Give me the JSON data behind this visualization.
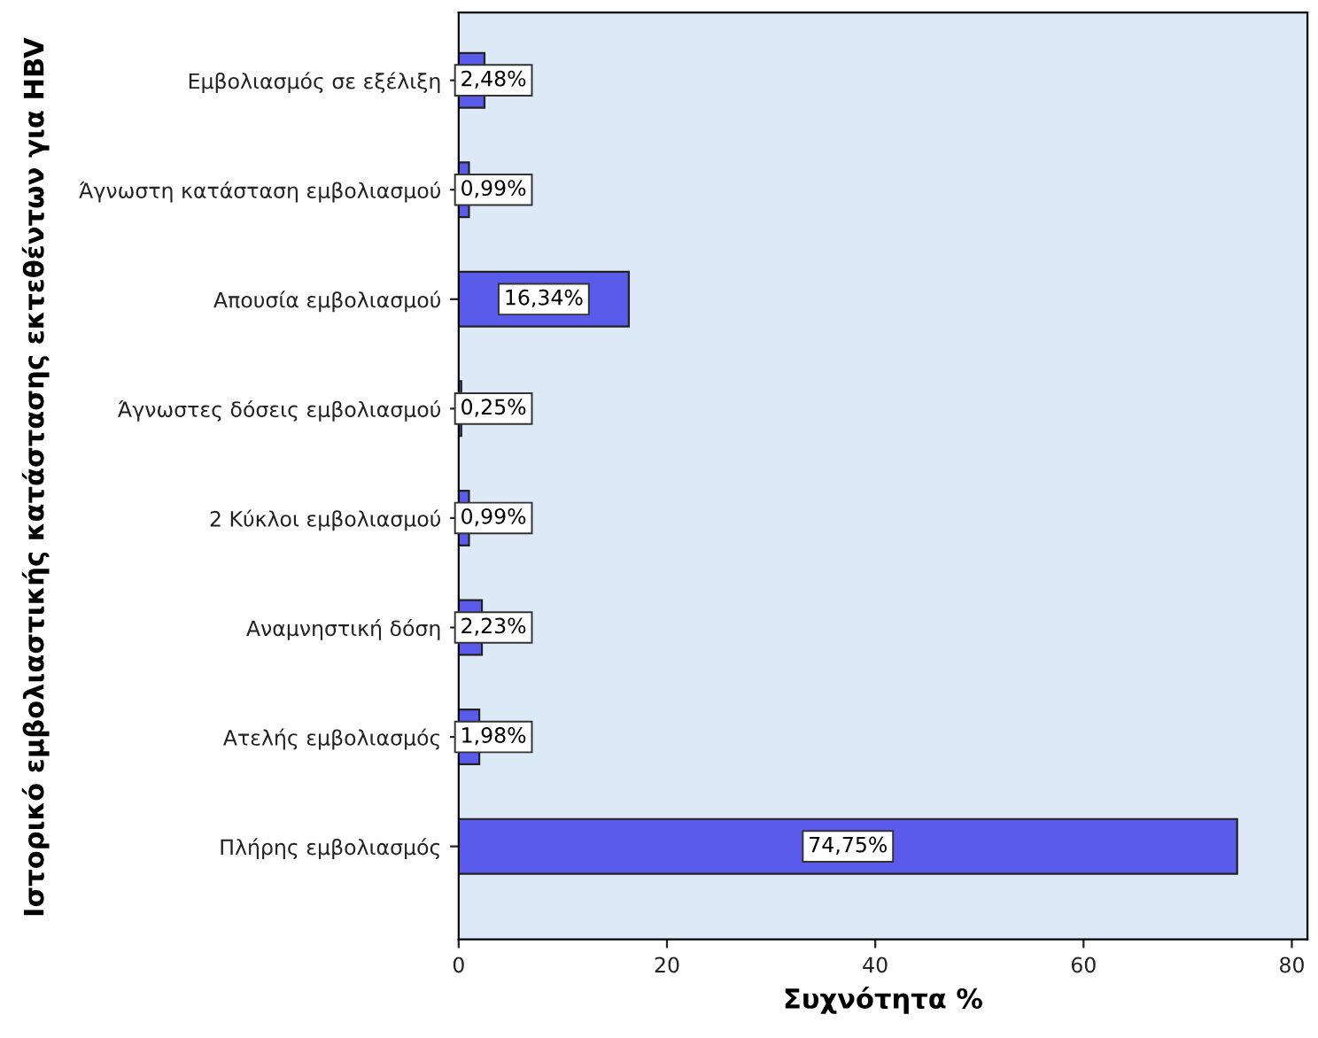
{
  "chart_data": {
    "type": "bar",
    "orientation": "horizontal",
    "xlabel": "Συχνότητα %",
    "ylabel": "Ιστορικό εμβολιαστικής κατάστασης εκτεθέντων για HBV",
    "categories": [
      "Εμβολιασμός σε εξέλιξη",
      "Άγνωστη κατάσταση εμβολιασμού",
      "Απουσία εμβολιασμού",
      "Άγνωστες δόσεις εμβολιασμού",
      "2 Κύκλοι εμβολιασμού",
      "Αναμνηστική δόση",
      "Ατελής εμβολιασμός",
      "Πλήρης εμβολιασμός"
    ],
    "values": [
      2.48,
      0.99,
      16.34,
      0.25,
      0.99,
      2.23,
      1.98,
      74.75
    ],
    "value_labels": [
      "2,48%",
      "0,99%",
      "16,34%",
      "0,25%",
      "0,99%",
      "2,23%",
      "1,98%",
      "74,75%"
    ],
    "color": "#5a5aeb",
    "xlim": [
      0,
      81.5
    ],
    "xticks": [
      0,
      20,
      40,
      60,
      80
    ],
    "grid": false,
    "legend": false
  }
}
